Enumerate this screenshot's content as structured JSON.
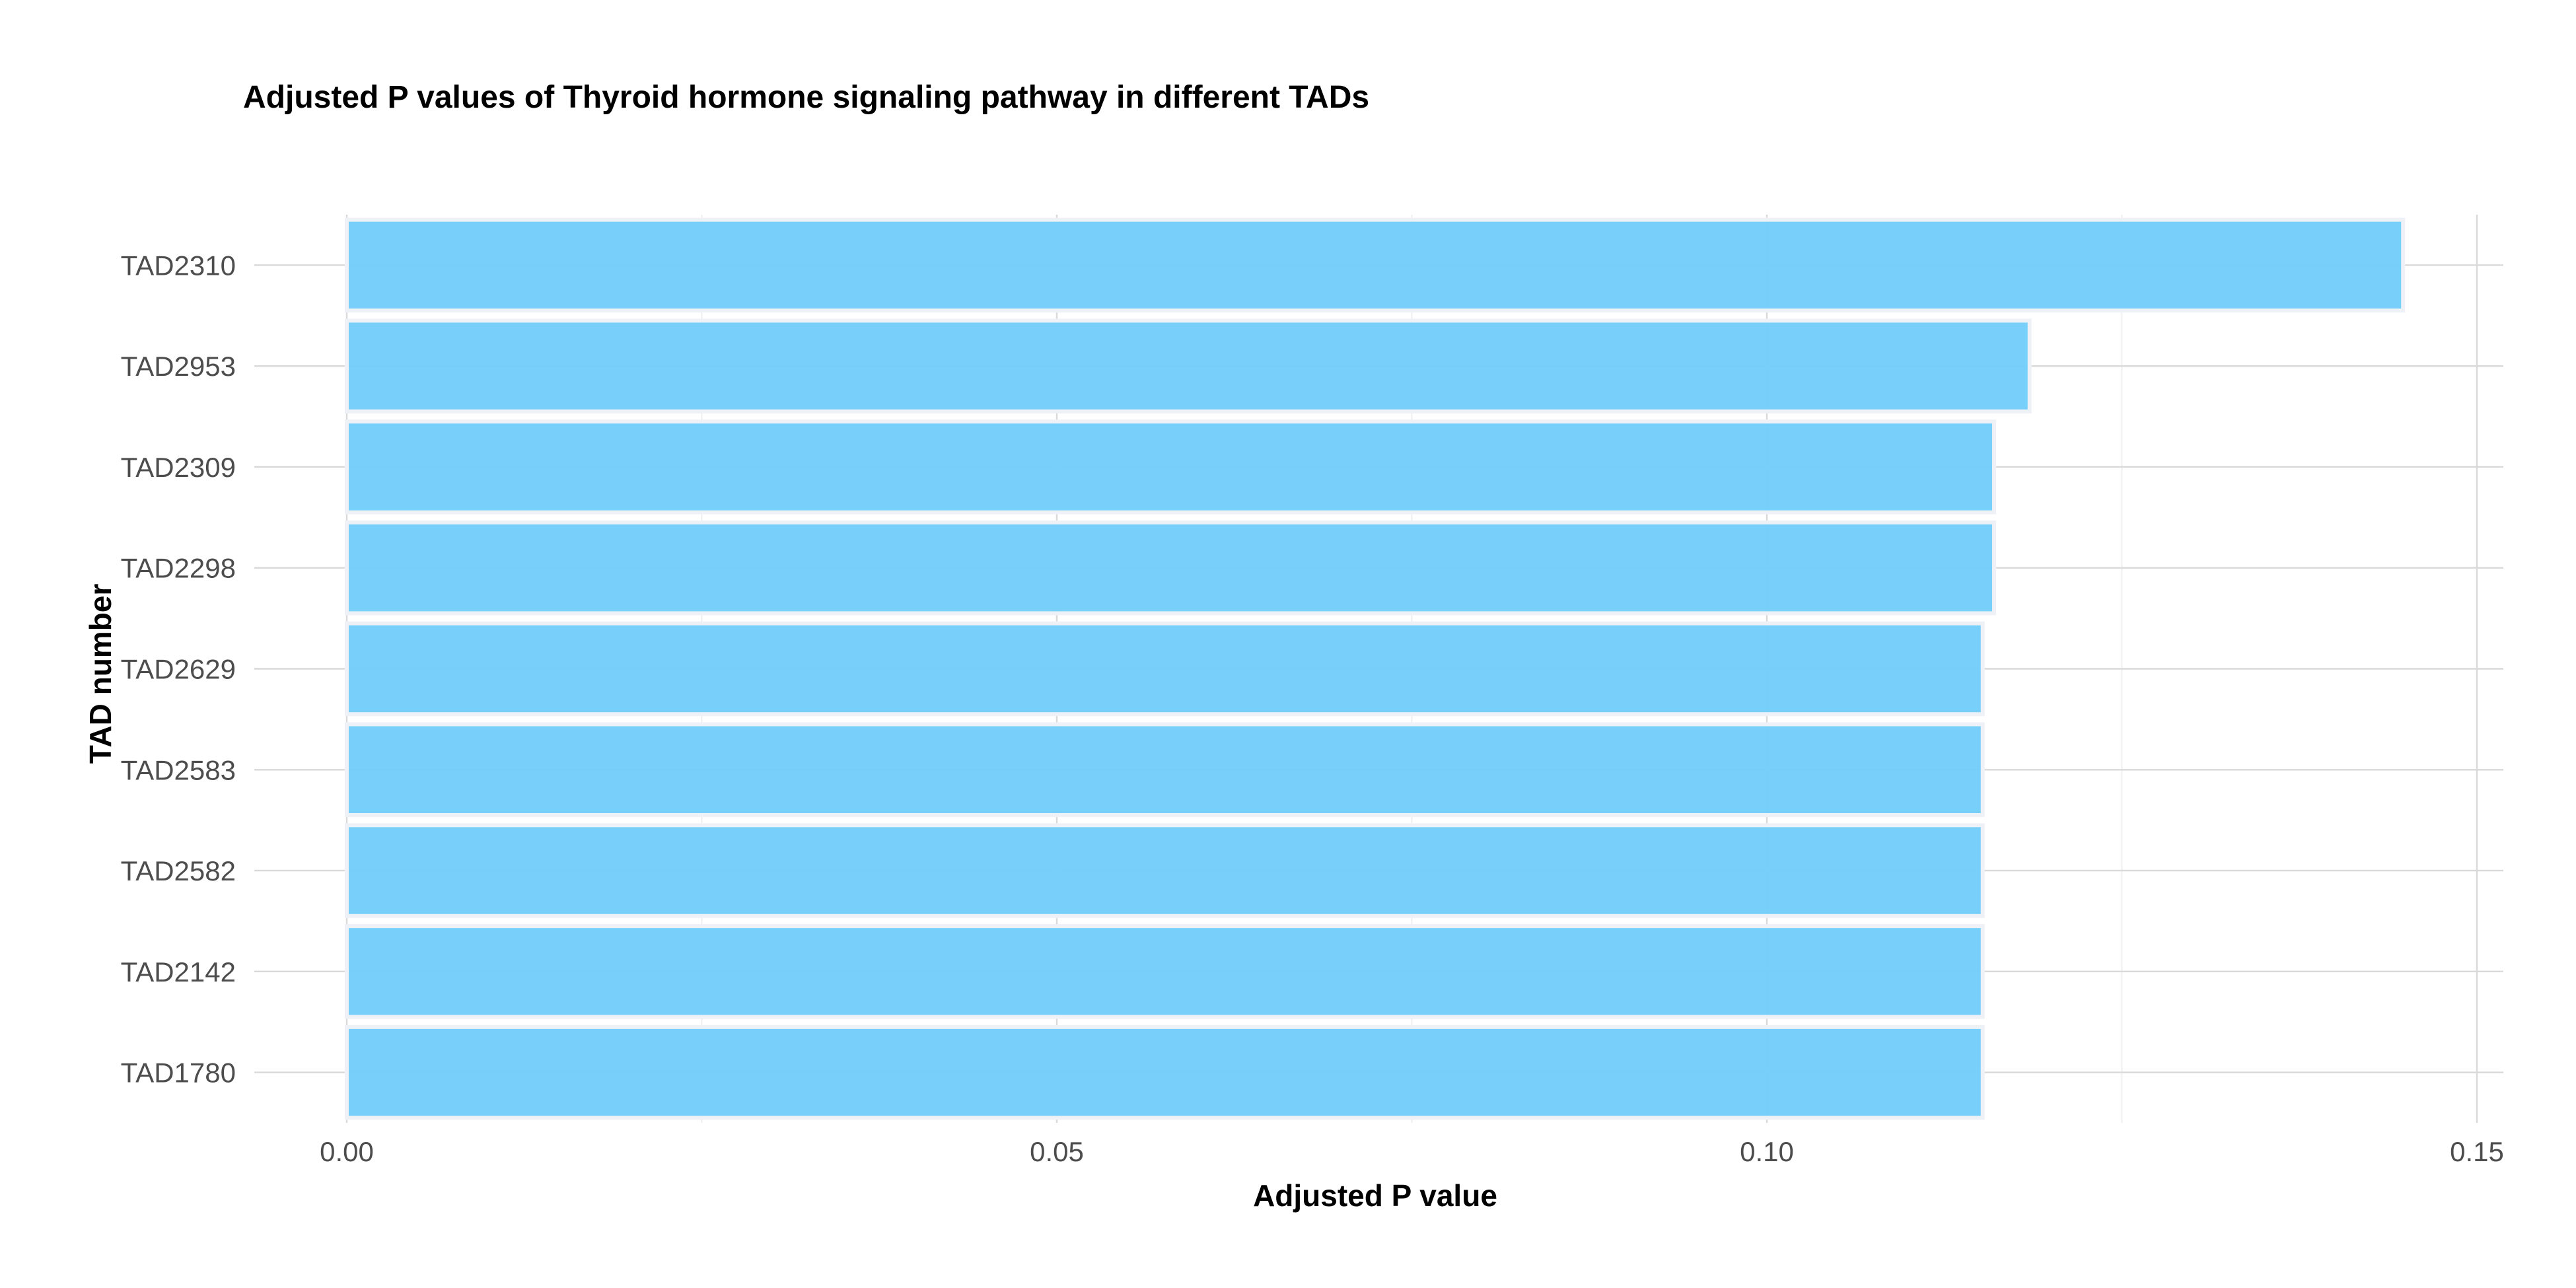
{
  "chart_data": {
    "type": "bar",
    "orientation": "horizontal",
    "title": "Adjusted P values of Thyroid hormone signaling pathway in different TADs",
    "xlabel": "Adjusted P value",
    "ylabel": "TAD number",
    "categories": [
      "TAD2310",
      "TAD2953",
      "TAD2309",
      "TAD2298",
      "TAD2629",
      "TAD2583",
      "TAD2582",
      "TAD2142",
      "TAD1780"
    ],
    "values": [
      0.1448,
      0.1185,
      0.116,
      0.116,
      0.1152,
      0.1152,
      0.1152,
      0.1152,
      0.1152
    ],
    "xlim": [
      0,
      0.152
    ],
    "xticks": [
      0.0,
      0.05,
      0.1,
      0.15
    ],
    "xtick_labels": [
      "0.00",
      "0.05",
      "0.10",
      "0.15"
    ],
    "bar_color": "#74cdfa",
    "grid": true,
    "legend": "none"
  }
}
